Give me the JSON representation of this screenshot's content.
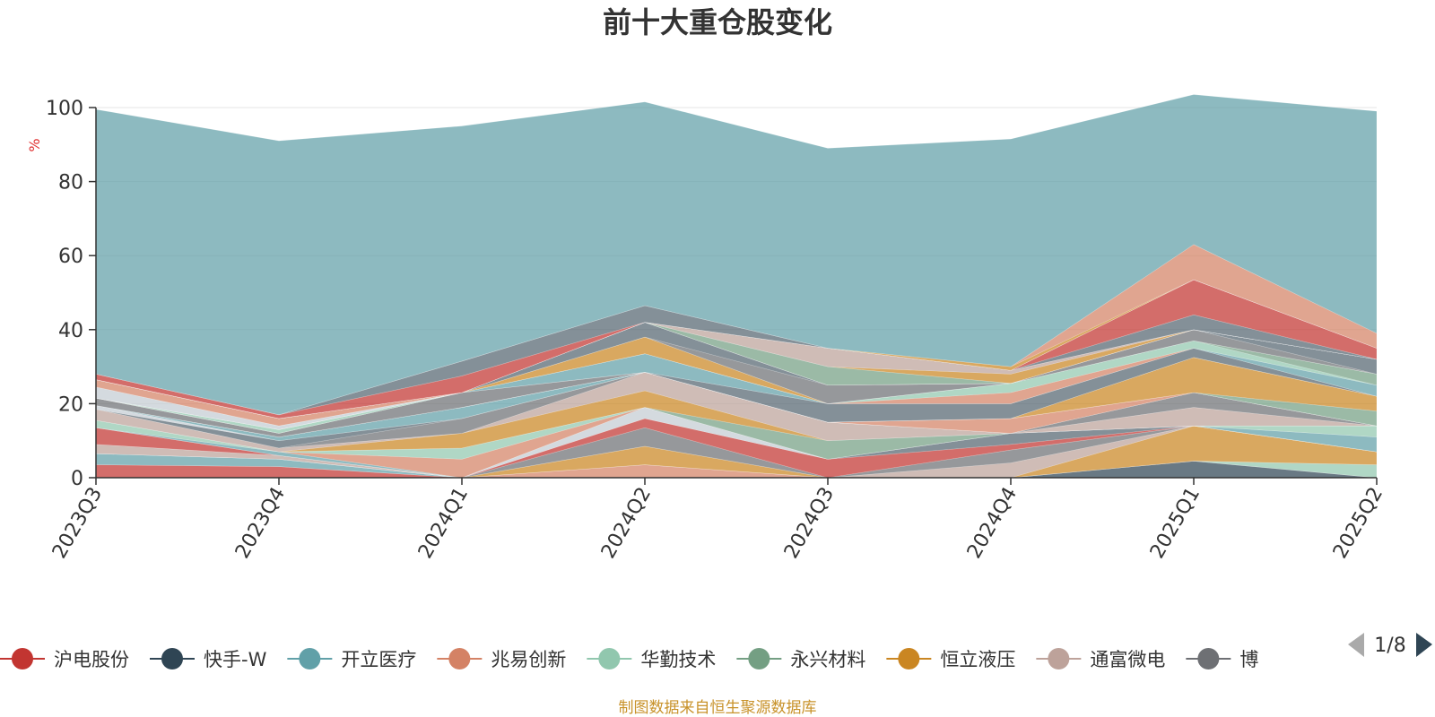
{
  "chart_data": {
    "type": "area",
    "title": "前十大重仓股变化",
    "ylabel": "%",
    "ylim": [
      0,
      100
    ],
    "yticks": [
      "0",
      "20",
      "40",
      "60",
      "80",
      "100"
    ],
    "categories": [
      "2023Q3",
      "2023Q4",
      "2024Q1",
      "2024Q2",
      "2024Q3",
      "2024Q4",
      "2025Q1",
      "2025Q2"
    ],
    "grid": true,
    "legend_position": "bottom",
    "series": [
      {
        "name": "沪电股份",
        "color": "#c23531",
        "values": [
          3.5,
          3.0,
          0,
          0,
          0,
          0,
          0,
          0
        ]
      },
      {
        "name": "快手-W",
        "color": "#2f4554",
        "values": [
          0,
          0,
          0,
          0,
          0,
          0,
          4.5,
          0
        ]
      },
      {
        "name": "开立医疗",
        "color": "#61a0a8",
        "values": [
          3.0,
          2.0,
          0,
          0,
          0,
          0,
          0,
          0
        ]
      },
      {
        "name": "兆易创新",
        "color": "#d48265",
        "values": [
          0,
          0,
          0,
          3.5,
          0,
          0,
          0,
          0
        ]
      },
      {
        "name": "华勤技术",
        "color": "#91c7ae",
        "values": [
          0,
          0,
          0,
          0,
          0,
          0,
          0,
          3.5
        ]
      },
      {
        "name": "永兴材料",
        "color": "#749f83",
        "values": [
          0,
          0,
          0,
          0,
          0,
          0,
          0,
          0
        ]
      },
      {
        "name": "恒立液压",
        "color": "#ca8622",
        "values": [
          0,
          0,
          0,
          5.0,
          0,
          0,
          9.5,
          3.5
        ]
      },
      {
        "name": "通富微电",
        "color": "#bda29a",
        "values": [
          2.5,
          1.0,
          0,
          0,
          0,
          4.0,
          0,
          0
        ]
      },
      {
        "name": "博",
        "color": "#6e7074",
        "values": [
          0,
          0,
          0,
          5.0,
          0,
          3.5,
          0,
          0
        ]
      },
      {
        "name": "",
        "color": "#c23531",
        "values": [
          4.5,
          0,
          0,
          2.5,
          5.0,
          1.5,
          0,
          0
        ]
      },
      {
        "name": "",
        "color": "#546570",
        "values": [
          0,
          0,
          0,
          0,
          0,
          3.0,
          0,
          0
        ]
      },
      {
        "name": "",
        "color": "#c4ccd3",
        "values": [
          0,
          0,
          0,
          3.0,
          0,
          0,
          0,
          0
        ]
      },
      {
        "name": "",
        "color": "#61a0a8",
        "values": [
          0,
          1.0,
          0,
          0,
          0,
          0,
          0,
          4.0
        ]
      },
      {
        "name": "",
        "color": "#d48265",
        "values": [
          0,
          0,
          5.0,
          0,
          0,
          0,
          0,
          0
        ]
      },
      {
        "name": "",
        "color": "#91c7ae",
        "values": [
          2.0,
          0,
          3.0,
          0,
          0,
          0,
          0,
          3.0
        ]
      },
      {
        "name": "",
        "color": "#749f83",
        "values": [
          0,
          0,
          0,
          0,
          5.0,
          0,
          0,
          0
        ]
      },
      {
        "name": "",
        "color": "#ca8622",
        "values": [
          0,
          0,
          4.0,
          4.5,
          0,
          0,
          0,
          0
        ]
      },
      {
        "name": "",
        "color": "#bda29a",
        "values": [
          3.0,
          1.0,
          0,
          5.0,
          5.0,
          0,
          5.0,
          0
        ]
      },
      {
        "name": "",
        "color": "#6e7074",
        "values": [
          0,
          0,
          4.0,
          0,
          0,
          0,
          4.0,
          0
        ]
      },
      {
        "name": "",
        "color": "#546570",
        "values": [
          0,
          2.0,
          0,
          0,
          0,
          0,
          0,
          0
        ]
      },
      {
        "name": "",
        "color": "#c4ccd3",
        "values": [
          1.0,
          0,
          0,
          0,
          0,
          0,
          0,
          0
        ]
      },
      {
        "name": "",
        "color": "#61a0a8",
        "values": [
          0,
          1.0,
          3.0,
          0,
          0,
          0,
          0,
          0
        ]
      },
      {
        "name": "",
        "color": "#d48265",
        "values": [
          0,
          0,
          0,
          0,
          0,
          4.0,
          0,
          0
        ]
      },
      {
        "name": "",
        "color": "#91c7ae",
        "values": [
          0,
          0,
          0,
          0,
          0,
          0,
          0,
          0
        ]
      },
      {
        "name": "",
        "color": "#749f83",
        "values": [
          0,
          0,
          0,
          0,
          0,
          0,
          0,
          4.0
        ]
      },
      {
        "name": "",
        "color": "#ca8622",
        "values": [
          0,
          0,
          0,
          0,
          0,
          0,
          9.5,
          4.0
        ]
      },
      {
        "name": "",
        "color": "#bda29a",
        "values": [
          0,
          0,
          0,
          0,
          0,
          0,
          0,
          0
        ]
      },
      {
        "name": "",
        "color": "#6e7074",
        "values": [
          2.0,
          1.0,
          4.0,
          0,
          0,
          0,
          0,
          0
        ]
      },
      {
        "name": "",
        "color": "#546570",
        "values": [
          0,
          0,
          0,
          0,
          5.0,
          4.0,
          2.5,
          0
        ]
      },
      {
        "name": "",
        "color": "#c4ccd3",
        "values": [
          0,
          0,
          0,
          0,
          0,
          0,
          0,
          0
        ]
      },
      {
        "name": "",
        "color": "#61a0a8",
        "values": [
          0,
          0,
          0,
          5.0,
          0,
          0,
          0,
          3.0
        ]
      },
      {
        "name": "",
        "color": "#d48265",
        "values": [
          0,
          0,
          0,
          0,
          0,
          3.0,
          0,
          0
        ]
      },
      {
        "name": "",
        "color": "#91c7ae",
        "values": [
          0,
          1.0,
          0,
          0,
          0,
          2.5,
          2.0,
          0
        ]
      },
      {
        "name": "",
        "color": "#749f83",
        "values": [
          0,
          0,
          0,
          0,
          0,
          0,
          0,
          3.0
        ]
      },
      {
        "name": "",
        "color": "#ca8622",
        "values": [
          0,
          0,
          0,
          4.5,
          0,
          0,
          0,
          0
        ]
      },
      {
        "name": "",
        "color": "#bda29a",
        "values": [
          0,
          0,
          0,
          0,
          0,
          0,
          0,
          0
        ]
      },
      {
        "name": "",
        "color": "#6e7074",
        "values": [
          0,
          0,
          0,
          0,
          5.0,
          0,
          3.0,
          0
        ]
      },
      {
        "name": "",
        "color": "#546570",
        "values": [
          0,
          0,
          0,
          4.0,
          0,
          0,
          0,
          4.0
        ]
      },
      {
        "name": "",
        "color": "#c4ccd3",
        "values": [
          3.0,
          1.0,
          0,
          0,
          0,
          0,
          0,
          0
        ]
      },
      {
        "name": "",
        "color": "#61a0a8",
        "values": [
          0,
          0,
          0,
          0,
          0,
          0,
          0,
          0
        ]
      },
      {
        "name": "",
        "color": "#d48265",
        "values": [
          2.0,
          2.0,
          0,
          0,
          0,
          0,
          0,
          0
        ]
      },
      {
        "name": "",
        "color": "#91c7ae",
        "values": [
          0,
          0,
          0,
          0,
          0,
          0,
          0,
          0
        ]
      },
      {
        "name": "",
        "color": "#749f83",
        "values": [
          0,
          0,
          0,
          0,
          5.0,
          0,
          0,
          0
        ]
      },
      {
        "name": "",
        "color": "#ca8622",
        "values": [
          0,
          0,
          0,
          0,
          0,
          2.5,
          0,
          0
        ]
      },
      {
        "name": "",
        "color": "#bda29a",
        "values": [
          0,
          0,
          0,
          0,
          5.0,
          1.0,
          0,
          0
        ]
      },
      {
        "name": "",
        "color": "#6e7074",
        "values": [
          0,
          0,
          0,
          0,
          0,
          0,
          0,
          0
        ]
      },
      {
        "name": "",
        "color": "#546570",
        "values": [
          0,
          0,
          0,
          0,
          0,
          0,
          4.0,
          0
        ]
      },
      {
        "name": "",
        "color": "#c23531",
        "values": [
          0,
          0,
          0,
          0,
          0,
          0,
          9.5,
          3.0
        ]
      },
      {
        "name": "",
        "color": "#c4ccd3",
        "values": [
          0,
          0,
          0,
          0,
          0,
          0,
          0,
          0
        ]
      },
      {
        "name": "",
        "color": "#61a0a8",
        "values": [
          0,
          0,
          0,
          0,
          0,
          0,
          0,
          0
        ]
      },
      {
        "name": "",
        "color": "#c23531",
        "values": [
          1.5,
          1.0,
          4.5,
          0,
          0,
          0,
          0,
          0
        ]
      },
      {
        "name": "",
        "color": "#546570",
        "values": [
          0,
          0,
          4.0,
          4.5,
          0,
          0,
          0,
          0
        ]
      },
      {
        "name": "",
        "color": "#ca8622",
        "values": [
          0,
          0,
          0,
          0,
          0,
          1.0,
          0,
          0
        ]
      },
      {
        "name": "",
        "color": "#d48265",
        "values": [
          0,
          0,
          0,
          0,
          0,
          0,
          9.5,
          4.0
        ]
      },
      {
        "name": "",
        "color": "#61a0a8",
        "values": [
          71.5,
          74.0,
          63.5,
          55.0,
          54.0,
          61.5,
          40.5,
          60.0
        ]
      }
    ]
  },
  "legend": {
    "page_indicator": "1/8",
    "prev_icon": "triangle-left-icon",
    "next_icon": "triangle-right-icon"
  },
  "source_note": "制图数据来自恒生聚源数据库"
}
